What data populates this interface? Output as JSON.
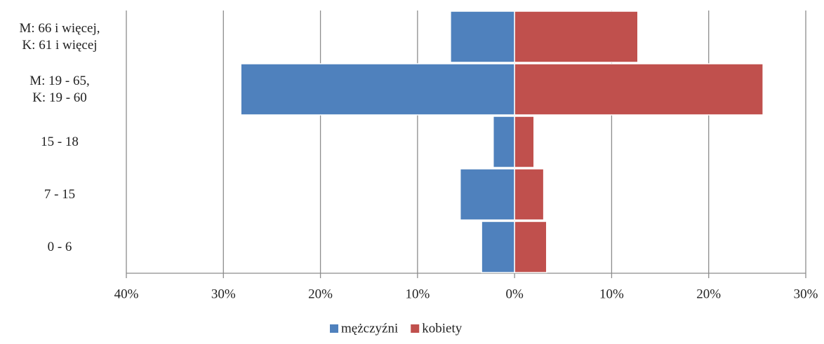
{
  "chart_data": {
    "type": "pyramid",
    "categories": [
      "0 - 6",
      "7 - 15",
      "15 - 18",
      "M: 19 - 65,\nK: 19 - 60",
      "M: 66 i więcej,\nK: 61 i więcej"
    ],
    "series": [
      {
        "name": "mężczyźni",
        "color": "#4f81bd",
        "values": [
          -3.4,
          -5.6,
          -2.2,
          -28.2,
          -6.6
        ]
      },
      {
        "name": "kobiety",
        "color": "#c0504d",
        "values": [
          3.3,
          3.0,
          2.0,
          25.6,
          12.7
        ]
      }
    ],
    "xlim": [
      -40,
      30
    ],
    "xticks": [
      {
        "value": -40,
        "label": "40%"
      },
      {
        "value": -30,
        "label": "30%"
      },
      {
        "value": -20,
        "label": "20%"
      },
      {
        "value": -10,
        "label": "10%"
      },
      {
        "value": 0,
        "label": "0%"
      },
      {
        "value": 10,
        "label": "10%"
      },
      {
        "value": 20,
        "label": "20%"
      },
      {
        "value": 30,
        "label": "30%"
      }
    ],
    "grid": true,
    "legend": "bottom"
  }
}
